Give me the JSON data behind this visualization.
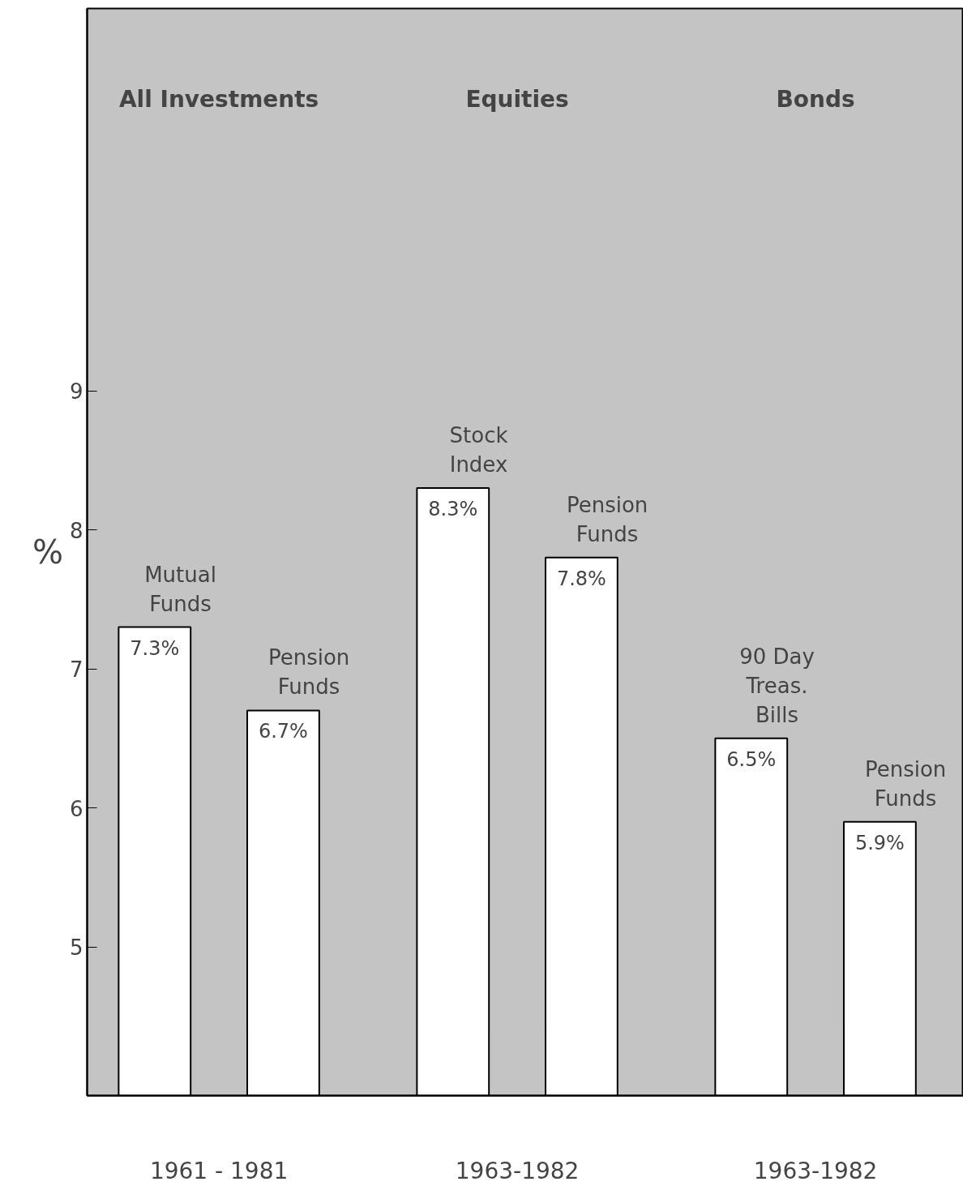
{
  "chart_data": {
    "type": "bar",
    "ylabel": "%",
    "categories": [
      "Mutual\nFunds",
      "Pension\nFunds",
      "Stock\nIndex",
      "Pension\nFunds",
      "90 Day\nTreas.\nBills",
      "Pension\nFunds"
    ],
    "values": [
      7.3,
      6.7,
      8.3,
      7.8,
      6.5,
      5.9
    ],
    "value_labels": [
      "7.3%",
      "6.7%",
      "8.3%",
      "7.8%",
      "6.5%",
      "5.9%"
    ],
    "color": "#ffffff",
    "ylim": [
      3.93,
      11.75
    ],
    "yticks": [
      5,
      6,
      7,
      8,
      9
    ],
    "grid": false,
    "annotations": [
      "All Investments",
      "Equities",
      "Bonds",
      "1961 - 1981",
      "1963-1982",
      "1963-1982"
    ]
  }
}
